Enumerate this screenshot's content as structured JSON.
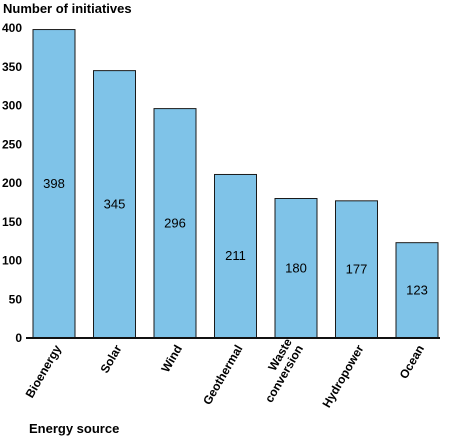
{
  "chart_data": {
    "type": "bar",
    "title": "",
    "ylabel": "Number of initiatives",
    "xlabel": "Energy source",
    "categories": [
      "Bioenergy",
      "Solar",
      "Wind",
      "Geothermal",
      "Waste conversion",
      "Hydropower",
      "Ocean"
    ],
    "category_lines": [
      [
        "Bioenergy"
      ],
      [
        "Solar"
      ],
      [
        "Wind"
      ],
      [
        "Geothermal"
      ],
      [
        "Waste",
        "conversion"
      ],
      [
        "Hydropower"
      ],
      [
        "Ocean"
      ]
    ],
    "values": [
      398,
      345,
      296,
      211,
      180,
      177,
      123
    ],
    "value_labels": [
      "398",
      "345",
      "296",
      "211",
      "180",
      "177",
      "123"
    ],
    "ylim": [
      0,
      400
    ],
    "yticks": [
      0,
      50,
      100,
      150,
      200,
      250,
      300,
      350,
      400
    ],
    "ytick_labels": [
      "0",
      "50",
      "100",
      "150",
      "200",
      "250",
      "300",
      "350",
      "400"
    ],
    "grid": false,
    "bar_color": "#7fc3e8",
    "bar_edge_color": "#1a1a1a"
  }
}
